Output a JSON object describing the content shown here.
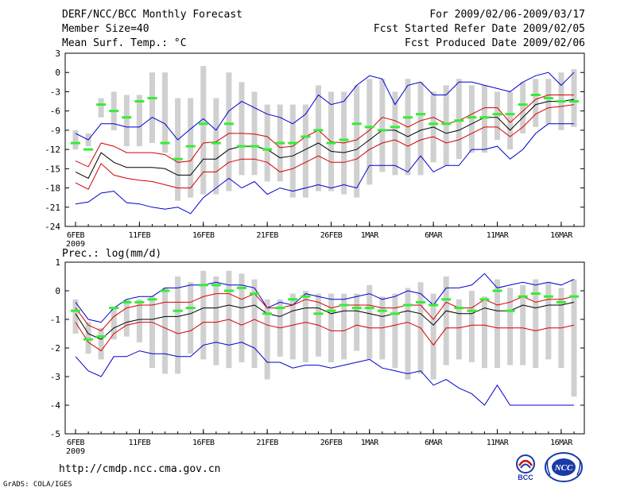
{
  "header": {
    "title": "DERF/NCC/BCC Monthly Forecast",
    "member_size": "Member Size=40",
    "variable": "Mean Surf. Temp.: °C",
    "period": "For 2009/02/06-2009/03/17",
    "start_date": "Fcst Started Refer Date 2009/02/05",
    "produced_date": "Fcst Produced Date 2009/02/06"
  },
  "footer": {
    "url": "http://cmdp.ncc.cma.gov.cn",
    "grads": "GrADS: COLA/IGES",
    "logo_bcc": "BCC",
    "logo_ncc": "NCC"
  },
  "colors": {
    "mean": "#000000",
    "spread": "#d40000",
    "extreme": "#0000d0",
    "box": "#d0d0d0",
    "median": "#33ee33"
  },
  "chart_data": [
    {
      "type": "line",
      "title": "Mean Surf. Temp.: °C",
      "ylabel": "°C",
      "ylim": [
        -24,
        3
      ],
      "yticks": [
        3,
        0,
        -3,
        -6,
        -9,
        -12,
        -15,
        -18,
        -21,
        -24
      ],
      "x": [
        1,
        2,
        3,
        4,
        5,
        6,
        7,
        8,
        9,
        10,
        11,
        12,
        13,
        14,
        15,
        16,
        17,
        18,
        19,
        20,
        21,
        22,
        23,
        24,
        25,
        26,
        27,
        28,
        29,
        30,
        31,
        32,
        33,
        34,
        35,
        36,
        37,
        38,
        39,
        40
      ],
      "xticks": [
        {
          "x": 1,
          "label": "6FEB",
          "sub": "2009"
        },
        {
          "x": 6,
          "label": "11FEB"
        },
        {
          "x": 11,
          "label": "16FEB"
        },
        {
          "x": 16,
          "label": "21FEB"
        },
        {
          "x": 21,
          "label": "26FEB"
        },
        {
          "x": 24,
          "label": "1MAR"
        },
        {
          "x": 29,
          "label": "6MAR"
        },
        {
          "x": 34,
          "label": "11MAR"
        },
        {
          "x": 39,
          "label": "16MAR"
        }
      ],
      "series": [
        {
          "name": "ensemble mean",
          "color": "mean",
          "values": [
            -15.5,
            -16.5,
            -12.5,
            -14,
            -14.8,
            -14.8,
            -14.8,
            -15,
            -16,
            -16,
            -13.5,
            -13.5,
            -12,
            -11.5,
            -11.5,
            -12,
            -13.3,
            -13,
            -12,
            -11,
            -12.3,
            -12.5,
            -12,
            -10.5,
            -9,
            -9,
            -10,
            -9,
            -8.5,
            -9.5,
            -9,
            -8,
            -7,
            -7,
            -9,
            -7,
            -5,
            -4.5,
            -4.5,
            -4.2
          ]
        },
        {
          "name": "mean + spread",
          "color": "spread",
          "values": [
            -13.8,
            -14.7,
            -11,
            -11.5,
            -12.5,
            -12.5,
            -12.5,
            -12.8,
            -14,
            -13.8,
            -11,
            -10.8,
            -9.5,
            -9.5,
            -9.6,
            -10,
            -11.7,
            -11.5,
            -10,
            -9,
            -10.8,
            -11,
            -10.5,
            -9,
            -7,
            -7.5,
            -8.5,
            -7.5,
            -7,
            -8,
            -7.5,
            -6.5,
            -5.5,
            -5.5,
            -7.8,
            -6,
            -4.2,
            -3.5,
            -3.5,
            -3.5
          ]
        },
        {
          "name": "mean - spread",
          "color": "spread",
          "values": [
            -17.2,
            -18.2,
            -14.2,
            -16,
            -16.5,
            -16.8,
            -17,
            -17.5,
            -18,
            -18,
            -15.5,
            -15.5,
            -14,
            -13.5,
            -13.5,
            -14,
            -15.5,
            -15,
            -14,
            -13,
            -14,
            -14,
            -13.5,
            -12,
            -11,
            -10.5,
            -11.5,
            -10.5,
            -10,
            -11,
            -10.5,
            -9.5,
            -8.5,
            -8.5,
            -10,
            -8.5,
            -6.5,
            -5.5,
            -5.3,
            -5
          ]
        },
        {
          "name": "ensemble max",
          "color": "extreme",
          "values": [
            -9.5,
            -10.5,
            -8,
            -8,
            -8.5,
            -8.5,
            -7,
            -8,
            -10.5,
            -8.8,
            -7.2,
            -9,
            -6,
            -4.5,
            -5.5,
            -6.5,
            -7,
            -8,
            -6.5,
            -3.5,
            -5,
            -4.5,
            -2,
            -0.5,
            -1,
            -5,
            -2,
            -1.5,
            -3.5,
            -3.5,
            -1.5,
            -1.5,
            -2,
            -2.5,
            -3,
            -1.5,
            -0.5,
            0,
            -2,
            0
          ]
        },
        {
          "name": "ensemble min",
          "color": "extreme",
          "values": [
            -20.5,
            -20.2,
            -18.8,
            -18.5,
            -20.3,
            -20.5,
            -21,
            -21.3,
            -21,
            -22,
            -19.5,
            -18,
            -16.5,
            -18,
            -17,
            -19,
            -18,
            -18.5,
            -18,
            -17.5,
            -18,
            -17.5,
            -18,
            -14.5,
            -14.5,
            -14.5,
            -15.5,
            -13,
            -15.5,
            -14.5,
            -14.5,
            -12,
            -12,
            -11.5,
            -13.5,
            -12,
            -9.5,
            -8,
            -8,
            -8
          ]
        },
        {
          "name": "box top",
          "color": "box",
          "values": [
            -9,
            -9.5,
            -4,
            -3,
            -3.5,
            -3.5,
            0,
            0,
            -4,
            -4,
            1,
            -4,
            0,
            -1.5,
            -3,
            -5,
            -5,
            -5,
            -5,
            -2,
            -3,
            -3,
            -2,
            -1,
            -1,
            -3,
            -1,
            -1.5,
            -3,
            -2,
            -1,
            -2,
            -2,
            -3,
            -3,
            -1.5,
            -1,
            -1,
            0,
            0.5
          ]
        },
        {
          "name": "box bottom",
          "color": "box",
          "values": [
            -12,
            -11.5,
            -7,
            -9,
            -11.5,
            -11.5,
            -11,
            -12.5,
            -20,
            -19.5,
            -19,
            -19,
            -18.5,
            -16,
            -16,
            -17,
            -17,
            -19.5,
            -19.5,
            -18.5,
            -18.5,
            -19,
            -19.5,
            -17.5,
            -15.5,
            -16,
            -16,
            -16,
            -14,
            -14.5,
            -13.5,
            -12.5,
            -12.5,
            -10.5,
            -12,
            -9.5,
            -8.5,
            -8,
            -9,
            -8.5
          ]
        },
        {
          "name": "median",
          "color": "median",
          "values": [
            -11,
            -12,
            -5,
            -6,
            -7,
            -4.5,
            -4,
            -11,
            -13.5,
            -11.5,
            -8,
            -11,
            -8,
            -11.5,
            -11.5,
            -12,
            -11,
            -11,
            -10,
            -9,
            -11,
            -10.5,
            -8,
            -8.5,
            -9,
            -8.5,
            -7,
            -6.5,
            -8,
            -8,
            -7.5,
            -7,
            -7,
            -6.5,
            -6.5,
            -5,
            -3.5,
            -4,
            -4.5,
            -4.5
          ]
        }
      ]
    },
    {
      "type": "line",
      "title": "Prec.: log(mm/d)",
      "ylabel": "log(mm/d)",
      "ylim": [
        -5,
        1
      ],
      "yticks": [
        1,
        0,
        -1,
        -2,
        -3,
        -4,
        -5
      ],
      "x": [
        1,
        2,
        3,
        4,
        5,
        6,
        7,
        8,
        9,
        10,
        11,
        12,
        13,
        14,
        15,
        16,
        17,
        18,
        19,
        20,
        21,
        22,
        23,
        24,
        25,
        26,
        27,
        28,
        29,
        30,
        31,
        32,
        33,
        34,
        35,
        36,
        37,
        38,
        39,
        40
      ],
      "xticks": [
        {
          "x": 1,
          "label": "6FEB",
          "sub": "2009"
        },
        {
          "x": 6,
          "label": "11FEB"
        },
        {
          "x": 11,
          "label": "16FEB"
        },
        {
          "x": 16,
          "label": "21FEB"
        },
        {
          "x": 21,
          "label": "26FEB"
        },
        {
          "x": 24,
          "label": "1MAR"
        },
        {
          "x": 29,
          "label": "6MAR"
        },
        {
          "x": 34,
          "label": "11MAR"
        },
        {
          "x": 39,
          "label": "16MAR"
        }
      ],
      "series": [
        {
          "name": "ensemble mean",
          "color": "mean",
          "values": [
            -0.8,
            -1.5,
            -1.7,
            -1.3,
            -1.1,
            -1,
            -1,
            -0.9,
            -0.9,
            -0.8,
            -0.6,
            -0.6,
            -0.5,
            -0.6,
            -0.5,
            -0.8,
            -0.9,
            -0.7,
            -0.6,
            -0.6,
            -0.8,
            -0.7,
            -0.7,
            -0.8,
            -0.9,
            -0.8,
            -0.7,
            -0.8,
            -1.2,
            -0.7,
            -0.8,
            -0.8,
            -0.6,
            -0.7,
            -0.7,
            -0.5,
            -0.6,
            -0.5,
            -0.5,
            -0.4
          ]
        },
        {
          "name": "mean + spread",
          "color": "spread",
          "values": [
            -0.6,
            -1.2,
            -1.4,
            -0.9,
            -0.6,
            -0.5,
            -0.5,
            -0.4,
            -0.4,
            -0.4,
            -0.2,
            -0.1,
            -0.1,
            -0.3,
            -0.1,
            -0.6,
            -0.6,
            -0.5,
            -0.3,
            -0.4,
            -0.6,
            -0.5,
            -0.5,
            -0.5,
            -0.6,
            -0.6,
            -0.5,
            -0.5,
            -1,
            -0.4,
            -0.6,
            -0.6,
            -0.3,
            -0.5,
            -0.4,
            -0.2,
            -0.4,
            -0.3,
            -0.3,
            -0.2
          ]
        },
        {
          "name": "mean - spread",
          "color": "spread",
          "values": [
            -1.1,
            -1.8,
            -2.1,
            -1.5,
            -1.2,
            -1.1,
            -1.1,
            -1.3,
            -1.5,
            -1.4,
            -1.1,
            -1.1,
            -1,
            -1.2,
            -1,
            -1.2,
            -1.3,
            -1.2,
            -1.1,
            -1.2,
            -1.4,
            -1.4,
            -1.2,
            -1.3,
            -1.3,
            -1.2,
            -1.1,
            -1.3,
            -1.9,
            -1.3,
            -1.3,
            -1.2,
            -1.2,
            -1.3,
            -1.3,
            -1.3,
            -1.4,
            -1.3,
            -1.3,
            -1.2
          ]
        },
        {
          "name": "ensemble max",
          "color": "extreme",
          "values": [
            -0.4,
            -1,
            -1.1,
            -0.6,
            -0.3,
            -0.2,
            -0.2,
            0.1,
            0.1,
            0.2,
            0.2,
            0.3,
            0.2,
            0.2,
            0.1,
            -0.6,
            -0.4,
            -0.5,
            -0.1,
            -0.2,
            -0.3,
            -0.3,
            -0.2,
            -0.1,
            -0.3,
            -0.2,
            0,
            -0.1,
            -0.5,
            0.1,
            0.1,
            0.2,
            0.6,
            0.1,
            0.2,
            0.3,
            0.2,
            0.3,
            0.2,
            0.4
          ]
        },
        {
          "name": "ensemble min",
          "color": "extreme",
          "values": [
            -2.3,
            -2.8,
            -3,
            -2.3,
            -2.3,
            -2.1,
            -2.2,
            -2.2,
            -2.3,
            -2.3,
            -1.9,
            -1.8,
            -1.9,
            -1.8,
            -2,
            -2.5,
            -2.5,
            -2.7,
            -2.6,
            -2.6,
            -2.7,
            -2.6,
            -2.5,
            -2.4,
            -2.7,
            -2.8,
            -2.9,
            -2.8,
            -3.3,
            -3.1,
            -3.4,
            -3.6,
            -4,
            -3.3,
            -4,
            -4,
            -4,
            -4,
            -4,
            -4
          ]
        },
        {
          "name": "box top",
          "color": "box",
          "values": [
            -0.3,
            -1.1,
            -1.3,
            -0.6,
            -0.3,
            -0.3,
            -0.2,
            0.1,
            0.5,
            0.3,
            0.7,
            0.5,
            0.7,
            0.6,
            0.4,
            -0.3,
            -0.3,
            -0.1,
            0,
            -0.1,
            -0.1,
            -0.1,
            -0.1,
            0.2,
            -0.2,
            -0.1,
            0.1,
            0.3,
            -0.1,
            0.5,
            -0.3,
            0,
            -0.2,
            0.4,
            0.1,
            0.2,
            0.4,
            0.3,
            0.1,
            0.4
          ]
        },
        {
          "name": "box bottom",
          "color": "box",
          "values": [
            -1.5,
            -2.2,
            -2.4,
            -1.7,
            -1.6,
            -1.8,
            -2.7,
            -2.9,
            -2.9,
            -2.2,
            -2.4,
            -2.6,
            -2.7,
            -2.5,
            -2.7,
            -3.1,
            -2.3,
            -2.4,
            -2.5,
            -2.3,
            -2.5,
            -2.4,
            -2.1,
            -2.4,
            -2.4,
            -2.7,
            -3.1,
            -2.9,
            -3.1,
            -2.6,
            -2.4,
            -2.5,
            -2.7,
            -2.7,
            -2.6,
            -2.6,
            -2.7,
            -2.4,
            -2.7,
            -3.7
          ]
        },
        {
          "name": "median",
          "color": "median",
          "values": [
            -0.7,
            -1.7,
            -1.6,
            -0.6,
            -0.4,
            -0.4,
            -0.3,
            0,
            -0.7,
            -0.6,
            0.2,
            0.2,
            0,
            0.1,
            -0.1,
            -0.8,
            -0.6,
            -0.3,
            -0.2,
            -0.8,
            -0.7,
            -0.5,
            -0.6,
            -0.6,
            -0.7,
            -0.8,
            -0.5,
            -0.4,
            -0.5,
            -0.3,
            -0.6,
            -0.7,
            -0.3,
            0,
            -0.7,
            -0.2,
            -0.1,
            -0.2,
            -0.4,
            -0.2
          ]
        }
      ]
    }
  ]
}
